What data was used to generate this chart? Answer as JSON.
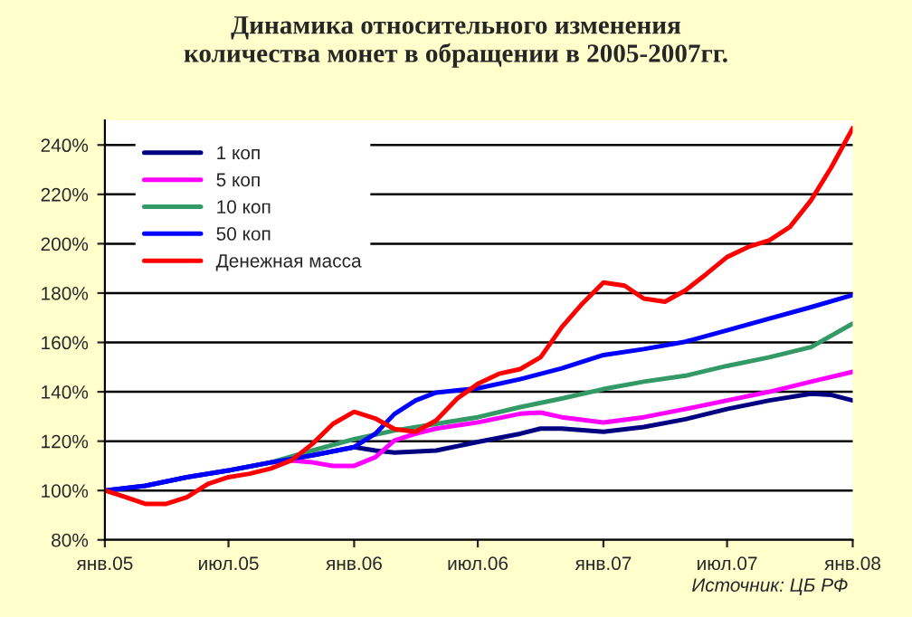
{
  "chart_data": {
    "type": "line",
    "title": "Динамика относительного изменения\nколичества монет в обращении в 2005-2007гг.",
    "series": [
      {
        "name": "1 коп",
        "color": "#000080",
        "x": [
          "2005-01",
          "2005-03",
          "2005-05",
          "2005-07",
          "2005-09",
          "2005-11",
          "2006-01",
          "2006-02",
          "2006-03",
          "2006-05",
          "2006-07",
          "2006-09",
          "2006-10",
          "2006-11",
          "2007-01",
          "2007-03",
          "2007-05",
          "2007-07",
          "2007-09",
          "2007-11",
          "2007-12",
          "2008-01"
        ],
        "values": [
          100,
          101.9,
          105.4,
          108.1,
          111.4,
          114.3,
          117.6,
          116.2,
          115.4,
          116.2,
          119.7,
          123,
          125.1,
          125.1,
          123.8,
          125.7,
          128.9,
          133,
          136.5,
          139.2,
          138.7,
          136.5
        ]
      },
      {
        "name": "5 коп",
        "color": "#ff00ff",
        "x": [
          "2005-09",
          "2005-10",
          "2005-11",
          "2005-12",
          "2006-01",
          "2006-02",
          "2006-03",
          "2006-04",
          "2006-05",
          "2006-07",
          "2006-09",
          "2006-10",
          "2006-11",
          "2007-01",
          "2007-03",
          "2007-05",
          "2007-07",
          "2007-09",
          "2007-11",
          "2008-01"
        ],
        "values": [
          111.4,
          112.2,
          111.4,
          110,
          110,
          113.5,
          120.3,
          123,
          125.1,
          127.6,
          131.1,
          131.6,
          129.7,
          127.6,
          129.7,
          133,
          136.5,
          140,
          144.1,
          148.1
        ]
      },
      {
        "name": "10 коп",
        "color": "#339966",
        "x": [
          "2005-07",
          "2005-09",
          "2005-11",
          "2006-01",
          "2006-03",
          "2006-05",
          "2006-07",
          "2006-09",
          "2006-11",
          "2007-01",
          "2007-03",
          "2007-05",
          "2007-07",
          "2007-09",
          "2007-11",
          "2008-01"
        ],
        "values": [
          108.1,
          111.4,
          116.2,
          120.8,
          124.3,
          127,
          129.7,
          133.8,
          137.3,
          141.1,
          144.1,
          146.5,
          150.5,
          154,
          158.1,
          167.6
        ]
      },
      {
        "name": "50 коп",
        "color": "#0000ff",
        "x": [
          "2005-01",
          "2005-03",
          "2005-05",
          "2005-07",
          "2005-09",
          "2005-11",
          "2006-01",
          "2006-02",
          "2006-03",
          "2006-04",
          "2006-05",
          "2006-07",
          "2006-09",
          "2006-11",
          "2007-01",
          "2007-03",
          "2007-05",
          "2007-07",
          "2007-09",
          "2007-11",
          "2008-01"
        ],
        "values": [
          100,
          101.9,
          105.4,
          108.1,
          111.4,
          114.3,
          117.6,
          123,
          131,
          136.5,
          139.7,
          141.4,
          145.1,
          149.5,
          154.9,
          157.3,
          160.3,
          164.9,
          169.7,
          174.3,
          179.2
        ]
      },
      {
        "name": "Денежная масса",
        "color": "#ff0000",
        "x": [
          "2005-01",
          "2005-02",
          "2005-03",
          "2005-04",
          "2005-05",
          "2005-06",
          "2005-07",
          "2005-08",
          "2005-09",
          "2005-10",
          "2005-11",
          "2005-12",
          "2006-01",
          "2006-02",
          "2006-03",
          "2006-04",
          "2006-05",
          "2006-06",
          "2006-07",
          "2006-08",
          "2006-09",
          "2006-10",
          "2006-11",
          "2006-12",
          "2007-01",
          "2007-02",
          "2007-03",
          "2007-04",
          "2007-05",
          "2007-06",
          "2007-07",
          "2007-08",
          "2007-09",
          "2007-10",
          "2007-11",
          "2007-12",
          "2008-01"
        ],
        "values": [
          100,
          97.3,
          94.6,
          94.6,
          97.3,
          102.7,
          105.4,
          106.8,
          108.9,
          112.2,
          118.9,
          127,
          131.9,
          129.2,
          124.9,
          123.8,
          128.4,
          137.3,
          143.2,
          147.3,
          149.2,
          154,
          166.2,
          175.7,
          184.3,
          183,
          177.8,
          176.5,
          181.1,
          187.8,
          194.6,
          198.7,
          201.4,
          206.8,
          217.6,
          231.1,
          246.8
        ]
      }
    ],
    "xlim": [
      "2005-01",
      "2008-01"
    ],
    "xticks": [
      {
        "value": "2005-01",
        "label": "янв.05"
      },
      {
        "value": "2005-07",
        "label": "июл.05"
      },
      {
        "value": "2006-01",
        "label": "янв.06"
      },
      {
        "value": "2006-07",
        "label": "июл.06"
      },
      {
        "value": "2007-01",
        "label": "янв.07"
      },
      {
        "value": "2007-07",
        "label": "июл.07"
      },
      {
        "value": "2008-01",
        "label": "янв.08"
      }
    ],
    "ylim": [
      80,
      250
    ],
    "yticks": [
      {
        "value": 80,
        "label": "80%"
      },
      {
        "value": 100,
        "label": "100%"
      },
      {
        "value": 120,
        "label": "120%"
      },
      {
        "value": 140,
        "label": "140%"
      },
      {
        "value": 160,
        "label": "160%"
      },
      {
        "value": 180,
        "label": "180%"
      },
      {
        "value": 200,
        "label": "200%"
      },
      {
        "value": 220,
        "label": "220%"
      },
      {
        "value": 240,
        "label": "240%"
      }
    ],
    "grid": "y",
    "legend": "top left",
    "marker": "none",
    "line_style": "solid",
    "annotations": [
      "Источник: ЦБ РФ"
    ]
  }
}
